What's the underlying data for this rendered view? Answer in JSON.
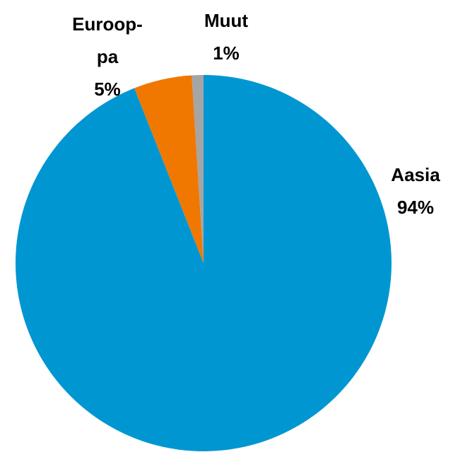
{
  "chart_data": {
    "type": "pie",
    "categories": [
      "Aasia",
      "Euroop-pa",
      "Muut"
    ],
    "values": [
      94,
      5,
      1
    ],
    "value_labels": [
      "94%",
      "5%",
      "1%"
    ],
    "colors": [
      "#0096d2",
      "#f07800",
      "#a5a5a5"
    ]
  }
}
